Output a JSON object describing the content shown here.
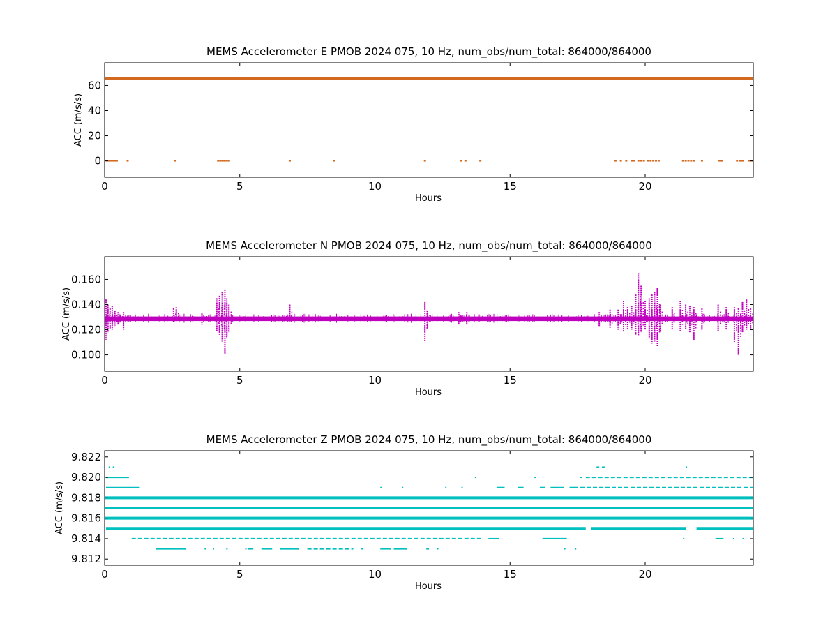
{
  "chart_data": [
    {
      "type": "scatter",
      "title": "MEMS Accelerometer E PMOB 2024 075, 10 Hz, num_obs/num_total: 864000/864000",
      "xlabel": "Hours",
      "ylabel": "ACC (m/s/s)",
      "xlim": [
        0,
        24
      ],
      "ylim": [
        -13,
        78
      ],
      "xticks": [
        0,
        5,
        10,
        15,
        20
      ],
      "xtick_labels": [
        "0",
        "5",
        "10",
        "15",
        "20"
      ],
      "yticks": [
        0,
        20,
        40,
        60
      ],
      "ytick_labels": [
        "0",
        "20",
        "40",
        "60"
      ],
      "color": "#d2691e",
      "grid": false,
      "series": [
        {
          "bands": [
            {
              "y": 65.8,
              "x_start": 0,
              "x_end": 24,
              "weight": "thick"
            }
          ],
          "points": [
            {
              "x": 0.08,
              "y": 0
            },
            {
              "x": 0.15,
              "y": 0
            },
            {
              "x": 0.22,
              "y": 0
            },
            {
              "x": 0.3,
              "y": 0
            },
            {
              "x": 0.38,
              "y": 0
            },
            {
              "x": 0.45,
              "y": 0
            },
            {
              "x": 0.85,
              "y": 0
            },
            {
              "x": 2.6,
              "y": 0
            },
            {
              "x": 4.2,
              "y": 0
            },
            {
              "x": 4.28,
              "y": 0
            },
            {
              "x": 4.36,
              "y": 0
            },
            {
              "x": 4.44,
              "y": 0
            },
            {
              "x": 4.52,
              "y": 0
            },
            {
              "x": 4.6,
              "y": 0
            },
            {
              "x": 6.85,
              "y": 0
            },
            {
              "x": 8.5,
              "y": 0
            },
            {
              "x": 11.85,
              "y": 0
            },
            {
              "x": 13.2,
              "y": 0
            },
            {
              "x": 13.35,
              "y": 0
            },
            {
              "x": 13.9,
              "y": 0
            },
            {
              "x": 18.9,
              "y": 0
            },
            {
              "x": 19.1,
              "y": 0
            },
            {
              "x": 19.3,
              "y": 0
            },
            {
              "x": 19.5,
              "y": 0
            },
            {
              "x": 19.6,
              "y": 0
            },
            {
              "x": 19.75,
              "y": 0
            },
            {
              "x": 19.85,
              "y": 0
            },
            {
              "x": 19.95,
              "y": 0
            },
            {
              "x": 20.1,
              "y": 0
            },
            {
              "x": 20.2,
              "y": 0
            },
            {
              "x": 20.3,
              "y": 0
            },
            {
              "x": 20.4,
              "y": 0
            },
            {
              "x": 20.5,
              "y": 0
            },
            {
              "x": 21.4,
              "y": 0
            },
            {
              "x": 21.5,
              "y": 0
            },
            {
              "x": 21.6,
              "y": 0
            },
            {
              "x": 21.7,
              "y": 0
            },
            {
              "x": 21.8,
              "y": 0
            },
            {
              "x": 22.1,
              "y": 0
            },
            {
              "x": 22.75,
              "y": 0
            },
            {
              "x": 22.85,
              "y": 0
            },
            {
              "x": 23.4,
              "y": 0
            },
            {
              "x": 23.5,
              "y": 0
            },
            {
              "x": 23.6,
              "y": 0
            },
            {
              "x": 23.85,
              "y": 0
            },
            {
              "x": 23.95,
              "y": 0
            }
          ]
        }
      ]
    },
    {
      "type": "scatter",
      "title": "MEMS Accelerometer N PMOB 2024 075, 10 Hz, num_obs/num_total: 864000/864000",
      "xlabel": "Hours",
      "ylabel": "ACC (m/s/s)",
      "xlim": [
        0,
        24
      ],
      "ylim": [
        0.087,
        0.178
      ],
      "xticks": [
        0,
        5,
        10,
        15,
        20
      ],
      "xtick_labels": [
        "0",
        "5",
        "10",
        "15",
        "20"
      ],
      "yticks": [
        0.1,
        0.12,
        0.14,
        0.16
      ],
      "ytick_labels": [
        "0.100",
        "0.120",
        "0.140",
        "0.160"
      ],
      "color": "#bf00bf",
      "grid": false,
      "series": [
        {
          "bands": [
            {
              "y": 0.1287,
              "x_start": 0,
              "x_end": 24,
              "half_width": 0.0018
            }
          ],
          "segments": [
            {
              "x": 0.05,
              "y0": 0.112,
              "y1": 0.144
            },
            {
              "x": 0.12,
              "y0": 0.118,
              "y1": 0.14
            },
            {
              "x": 0.2,
              "y0": 0.121,
              "y1": 0.137
            },
            {
              "x": 0.28,
              "y0": 0.12,
              "y1": 0.139
            },
            {
              "x": 0.38,
              "y0": 0.123,
              "y1": 0.135
            },
            {
              "x": 0.5,
              "y0": 0.124,
              "y1": 0.134
            },
            {
              "x": 0.7,
              "y0": 0.12,
              "y1": 0.134
            },
            {
              "x": 2.55,
              "y0": 0.126,
              "y1": 0.137
            },
            {
              "x": 2.65,
              "y0": 0.126,
              "y1": 0.138
            },
            {
              "x": 3.6,
              "y0": 0.124,
              "y1": 0.133
            },
            {
              "x": 4.15,
              "y0": 0.119,
              "y1": 0.145
            },
            {
              "x": 4.25,
              "y0": 0.116,
              "y1": 0.147
            },
            {
              "x": 4.35,
              "y0": 0.11,
              "y1": 0.15
            },
            {
              "x": 4.45,
              "y0": 0.101,
              "y1": 0.152
            },
            {
              "x": 4.52,
              "y0": 0.113,
              "y1": 0.145
            },
            {
              "x": 4.6,
              "y0": 0.118,
              "y1": 0.14
            },
            {
              "x": 6.85,
              "y0": 0.126,
              "y1": 0.14
            },
            {
              "x": 11.85,
              "y0": 0.111,
              "y1": 0.142
            },
            {
              "x": 11.95,
              "y0": 0.122,
              "y1": 0.135
            },
            {
              "x": 13.1,
              "y0": 0.124,
              "y1": 0.134
            },
            {
              "x": 13.4,
              "y0": 0.124,
              "y1": 0.134
            },
            {
              "x": 18.3,
              "y0": 0.122,
              "y1": 0.134
            },
            {
              "x": 18.7,
              "y0": 0.121,
              "y1": 0.136
            },
            {
              "x": 19.0,
              "y0": 0.12,
              "y1": 0.136
            },
            {
              "x": 19.2,
              "y0": 0.118,
              "y1": 0.143
            },
            {
              "x": 19.35,
              "y0": 0.12,
              "y1": 0.138
            },
            {
              "x": 19.5,
              "y0": 0.12,
              "y1": 0.139
            },
            {
              "x": 19.65,
              "y0": 0.116,
              "y1": 0.148
            },
            {
              "x": 19.75,
              "y0": 0.115,
              "y1": 0.165
            },
            {
              "x": 19.85,
              "y0": 0.118,
              "y1": 0.155
            },
            {
              "x": 20.0,
              "y0": 0.12,
              "y1": 0.143
            },
            {
              "x": 20.15,
              "y0": 0.113,
              "y1": 0.145
            },
            {
              "x": 20.25,
              "y0": 0.109,
              "y1": 0.148
            },
            {
              "x": 20.35,
              "y0": 0.11,
              "y1": 0.15
            },
            {
              "x": 20.45,
              "y0": 0.107,
              "y1": 0.153
            },
            {
              "x": 20.55,
              "y0": 0.118,
              "y1": 0.14
            },
            {
              "x": 21.0,
              "y0": 0.12,
              "y1": 0.138
            },
            {
              "x": 21.3,
              "y0": 0.119,
              "y1": 0.143
            },
            {
              "x": 21.5,
              "y0": 0.12,
              "y1": 0.14
            },
            {
              "x": 21.65,
              "y0": 0.118,
              "y1": 0.139
            },
            {
              "x": 21.8,
              "y0": 0.112,
              "y1": 0.138
            },
            {
              "x": 22.1,
              "y0": 0.12,
              "y1": 0.137
            },
            {
              "x": 22.7,
              "y0": 0.119,
              "y1": 0.14
            },
            {
              "x": 23.0,
              "y0": 0.12,
              "y1": 0.138
            },
            {
              "x": 23.3,
              "y0": 0.11,
              "y1": 0.138
            },
            {
              "x": 23.45,
              "y0": 0.1,
              "y1": 0.137
            },
            {
              "x": 23.6,
              "y0": 0.118,
              "y1": 0.142
            },
            {
              "x": 23.75,
              "y0": 0.12,
              "y1": 0.144
            },
            {
              "x": 23.9,
              "y0": 0.121,
              "y1": 0.137
            }
          ]
        }
      ]
    },
    {
      "type": "scatter",
      "title": "MEMS Accelerometer Z PMOB 2024 075, 10 Hz, num_obs/num_total: 864000/864000",
      "xlabel": "Hours",
      "ylabel": "ACC (m/s/s)",
      "xlim": [
        0,
        24
      ],
      "ylim": [
        9.8114,
        9.8226
      ],
      "xticks": [
        0,
        5,
        10,
        15,
        20
      ],
      "xtick_labels": [
        "0",
        "5",
        "10",
        "15",
        "20"
      ],
      "yticks": [
        9.812,
        9.814,
        9.816,
        9.818,
        9.82,
        9.822
      ],
      "ytick_labels": [
        "9.812",
        "9.814",
        "9.816",
        "9.818",
        "9.820",
        "9.822"
      ],
      "color": "#00bfbf",
      "grid": false,
      "series": [
        {
          "levels": [
            {
              "y": 9.821,
              "runs": [
                [
                  0.15,
                  0.2
                ],
                [
                  0.3,
                  0.35
                ],
                [
                  18.2,
                  18.3
                ],
                [
                  18.4,
                  18.5
                ],
                [
                  21.5,
                  21.55
                ]
              ]
            },
            {
              "y": 9.82,
              "runs": [
                [
                  0.05,
                  0.9
                ],
                [
                  13.7,
                  13.75
                ],
                [
                  15.9,
                  15.95
                ],
                [
                  17.6,
                  17.65
                ],
                [
                  17.8,
                  24.0
                ]
              ]
            },
            {
              "y": 9.819,
              "runs": [
                [
                  0.05,
                  1.3
                ],
                [
                  10.2,
                  10.25
                ],
                [
                  11.0,
                  11.05
                ],
                [
                  12.6,
                  12.65
                ],
                [
                  13.2,
                  13.25
                ],
                [
                  14.5,
                  14.8
                ],
                [
                  15.3,
                  15.5
                ],
                [
                  16.1,
                  16.3
                ],
                [
                  16.5,
                  17.0
                ],
                [
                  17.2,
                  17.5
                ],
                [
                  17.6,
                  24.0
                ]
              ]
            },
            {
              "y": 9.818,
              "runs": [
                [
                  0.0,
                  24.0
                ]
              ]
            },
            {
              "y": 9.817,
              "runs": [
                [
                  0.0,
                  24.0
                ]
              ]
            },
            {
              "y": 9.816,
              "runs": [
                [
                  0.0,
                  24.0
                ]
              ]
            },
            {
              "y": 9.815,
              "runs": [
                [
                  0.05,
                  17.8
                ],
                [
                  18.0,
                  21.5
                ],
                [
                  21.9,
                  24.0
                ]
              ]
            },
            {
              "y": 9.814,
              "runs": [
                [
                  1.0,
                  14.0
                ],
                [
                  14.2,
                  14.6
                ],
                [
                  16.2,
                  17.1
                ],
                [
                  21.4,
                  21.45
                ],
                [
                  22.6,
                  22.9
                ],
                [
                  23.25,
                  23.3
                ],
                [
                  23.6,
                  23.65
                ]
              ]
            },
            {
              "y": 9.813,
              "runs": [
                [
                  1.9,
                  3.0
                ],
                [
                  3.7,
                  3.75
                ],
                [
                  4.0,
                  4.05
                ],
                [
                  4.5,
                  4.55
                ],
                [
                  5.2,
                  5.25
                ],
                [
                  5.3,
                  5.5
                ],
                [
                  5.8,
                  6.2
                ],
                [
                  6.5,
                  7.2
                ],
                [
                  7.5,
                  9.2
                ],
                [
                  9.5,
                  9.55
                ],
                [
                  10.2,
                  10.6
                ],
                [
                  10.7,
                  11.2
                ],
                [
                  11.9,
                  12.0
                ],
                [
                  12.3,
                  12.35
                ],
                [
                  17.0,
                  17.05
                ],
                [
                  17.4,
                  17.45
                ]
              ]
            }
          ],
          "thick_levels": [
            9.818,
            9.817,
            9.816,
            9.815
          ]
        }
      ]
    }
  ]
}
